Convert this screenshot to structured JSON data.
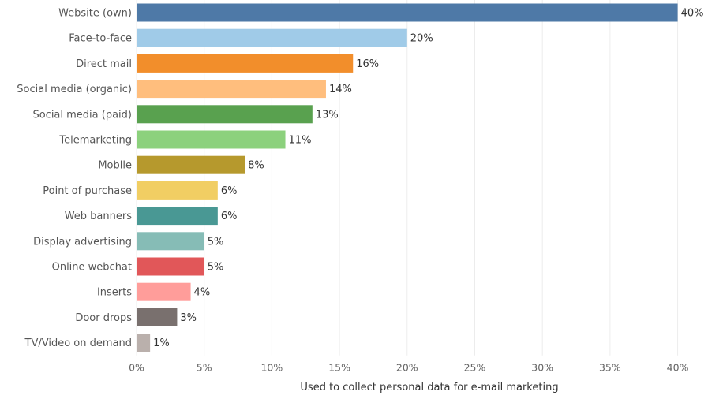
{
  "chart_data": {
    "type": "bar",
    "orientation": "horizontal",
    "categories": [
      "Website (own)",
      "Face-to-face",
      "Direct mail",
      "Social media (organic)",
      "Social media (paid)",
      "Telemarketing",
      "Mobile",
      "Point of purchase",
      "Web banners",
      "Display advertising",
      "Online webchat",
      "Inserts",
      "Door drops",
      "TV/Video on demand"
    ],
    "values": [
      40,
      20,
      16,
      14,
      13,
      11,
      8,
      6,
      6,
      5,
      5,
      4,
      3,
      1
    ],
    "value_labels": [
      "40%",
      "20%",
      "16%",
      "14%",
      "13%",
      "11%",
      "8%",
      "6%",
      "6%",
      "5%",
      "5%",
      "4%",
      "3%",
      "1%"
    ],
    "colors": [
      "#4e79a7",
      "#a0cbe8",
      "#f28e2b",
      "#ffbe7d",
      "#59a14f",
      "#8cd17d",
      "#b6992d",
      "#f1ce63",
      "#499894",
      "#86bcb6",
      "#e15759",
      "#ff9d9a",
      "#79706e",
      "#bab0ac"
    ],
    "xlim": [
      0,
      43
    ],
    "x_ticks": [
      0,
      5,
      10,
      15,
      20,
      25,
      30,
      35,
      40
    ],
    "x_tick_labels": [
      "0%",
      "5%",
      "10%",
      "15%",
      "20%",
      "25%",
      "30%",
      "35%",
      "40%"
    ],
    "xlabel": "Used to collect personal data for e-mail marketing",
    "ylabel": "",
    "title": "",
    "grid": "vertical",
    "legend": "none"
  }
}
